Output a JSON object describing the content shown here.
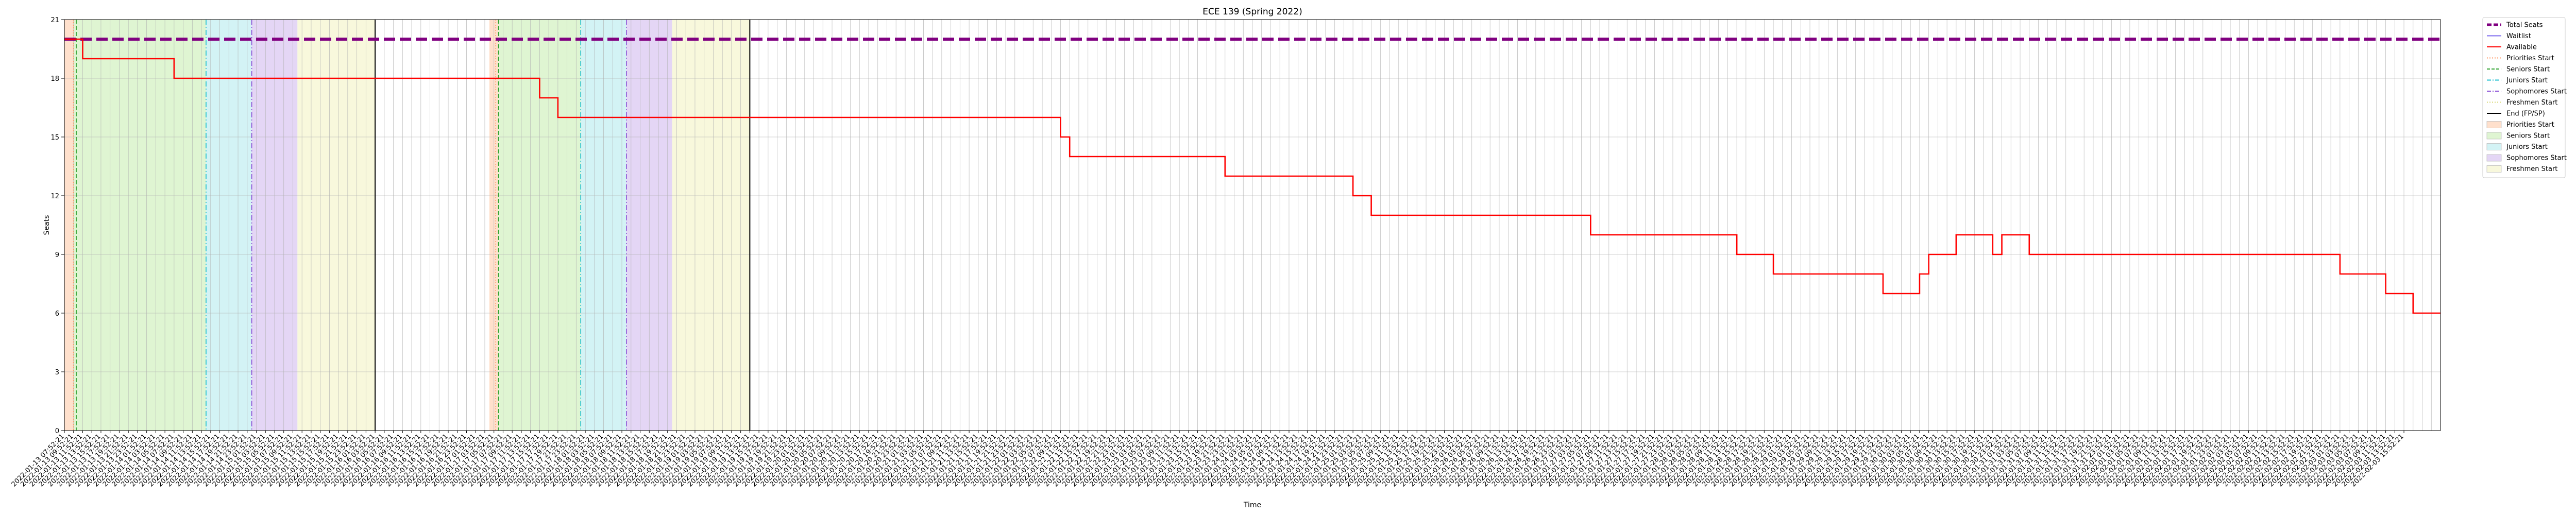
{
  "chart_data": {
    "type": "line",
    "title": "ECE 139 (Spring 2022)",
    "xlabel": "Time",
    "ylabel": "Seats",
    "ylim": [
      0,
      21
    ],
    "yticks": [
      0,
      3,
      6,
      9,
      12,
      15,
      18,
      21
    ],
    "grid": true,
    "legend_position": "outside-top-right",
    "x_slots": 260,
    "colors": {
      "total": "#800080",
      "waitlist": "#7b68ee",
      "available": "#ff0000",
      "priorities_line": "#ff9966",
      "seniors_line": "#2ca02c",
      "juniors_line": "#17becf",
      "sophomores_line": "#8a4fd6",
      "freshmen_line": "#d9d97a",
      "end_line": "#000000",
      "priorities_fill": "#ffe0cc",
      "seniors_fill": "#dff5d2",
      "juniors_fill": "#d3f3f5",
      "sophomores_fill": "#e4d6f5",
      "freshmen_fill": "#f8f8dc"
    },
    "series": [
      {
        "name": "Total Seats",
        "key": "total",
        "style": "dashed",
        "points": [
          [
            0,
            20
          ],
          [
            260,
            20
          ]
        ]
      },
      {
        "name": "Waitlist",
        "key": "waitlist",
        "style": "solid",
        "points": []
      },
      {
        "name": "Available",
        "key": "available",
        "style": "step",
        "points": [
          [
            0,
            20
          ],
          [
            2,
            20
          ],
          [
            2,
            19
          ],
          [
            12,
            19
          ],
          [
            12,
            18
          ],
          [
            52,
            18
          ],
          [
            52,
            17
          ],
          [
            54,
            17
          ],
          [
            54,
            16
          ],
          [
            109,
            16
          ],
          [
            109,
            15
          ],
          [
            110,
            15
          ],
          [
            110,
            14
          ],
          [
            127,
            14
          ],
          [
            127,
            13
          ],
          [
            141,
            13
          ],
          [
            141,
            12
          ],
          [
            143,
            12
          ],
          [
            143,
            11
          ],
          [
            167,
            11
          ],
          [
            167,
            10
          ],
          [
            183,
            10
          ],
          [
            183,
            9
          ],
          [
            187,
            9
          ],
          [
            187,
            8
          ],
          [
            199,
            8
          ],
          [
            199,
            7
          ],
          [
            203,
            7
          ],
          [
            203,
            8
          ],
          [
            204,
            8
          ],
          [
            204,
            9
          ],
          [
            207,
            9
          ],
          [
            207,
            10
          ],
          [
            211,
            10
          ],
          [
            211,
            9
          ],
          [
            212,
            9
          ],
          [
            212,
            10
          ],
          [
            215,
            10
          ],
          [
            215,
            9
          ],
          [
            249,
            9
          ],
          [
            249,
            8
          ],
          [
            254,
            8
          ],
          [
            254,
            7
          ],
          [
            257,
            7
          ],
          [
            257,
            6
          ],
          [
            260,
            6
          ]
        ]
      }
    ],
    "periods": [
      {
        "start": 0,
        "end": 1,
        "band": "priorities"
      },
      {
        "start": 1,
        "end": 15.5,
        "band": "seniors"
      },
      {
        "start": 15.5,
        "end": 20.5,
        "band": "juniors"
      },
      {
        "start": 20.5,
        "end": 25.5,
        "band": "sophomores"
      },
      {
        "start": 25.5,
        "end": 34,
        "band": "freshmen"
      },
      {
        "start": 46.5,
        "end": 47.5,
        "band": "priorities"
      },
      {
        "start": 47.5,
        "end": 56.5,
        "band": "seniors"
      },
      {
        "start": 56.5,
        "end": 61.5,
        "band": "juniors"
      },
      {
        "start": 61.5,
        "end": 66.5,
        "band": "sophomores"
      },
      {
        "start": 66.5,
        "end": 75,
        "band": "freshmen"
      }
    ],
    "markers": [
      {
        "x": 1,
        "band": "priorities"
      },
      {
        "x": 1.3,
        "band": "seniors"
      },
      {
        "x": 15.5,
        "band": "juniors"
      },
      {
        "x": 20.5,
        "band": "sophomores"
      },
      {
        "x": 34,
        "band": "end"
      },
      {
        "x": 47.2,
        "band": "priorities"
      },
      {
        "x": 47.5,
        "band": "seniors"
      },
      {
        "x": 56.5,
        "band": "juniors"
      },
      {
        "x": 61.5,
        "band": "sophomores"
      },
      {
        "x": 75,
        "band": "end"
      }
    ],
    "legend": [
      {
        "label": "Total Seats",
        "kind": "thickdash",
        "key": "total"
      },
      {
        "label": "Waitlist",
        "kind": "line",
        "key": "waitlist"
      },
      {
        "label": "Available",
        "kind": "line",
        "key": "available"
      },
      {
        "label": "Priorities Start",
        "kind": "dotted",
        "key": "priorities_line"
      },
      {
        "label": "Seniors Start",
        "kind": "dashed",
        "key": "seniors_line"
      },
      {
        "label": "Juniors Start",
        "kind": "dashdot",
        "key": "juniors_line"
      },
      {
        "label": "Sophomores Start",
        "kind": "dashdot",
        "key": "sophomores_line"
      },
      {
        "label": "Freshmen Start",
        "kind": "dotted",
        "key": "freshmen_line"
      },
      {
        "label": "End (FP/SP)",
        "kind": "line",
        "key": "end_line"
      },
      {
        "label": "Priorities Start",
        "kind": "patch",
        "key": "priorities_fill"
      },
      {
        "label": "Seniors Start",
        "kind": "patch",
        "key": "seniors_fill"
      },
      {
        "label": "Juniors Start",
        "kind": "patch",
        "key": "juniors_fill"
      },
      {
        "label": "Sophomores Start",
        "kind": "patch",
        "key": "sophomores_fill"
      },
      {
        "label": "Freshmen Start",
        "kind": "patch",
        "key": "freshmen_fill"
      }
    ],
    "x_tick_labels": [
      "2022-01-13 07:52:21",
      "2022-01-13 09:52:21",
      "2022-01-13 11:52:21",
      "2022-01-13 13:52:21",
      "2022-01-13 15:52:21",
      "2022-01-13 17:52:21",
      "2022-01-13 19:52:21",
      "2022-01-13 21:52:21",
      "2022-01-13 23:52:21",
      "2022-01-14 01:52:21",
      "2022-01-14 03:52:21",
      "2022-01-14 05:52:21",
      "2022-01-14 07:52:21",
      "2022-01-14 09:52:21",
      "2022-01-14 11:52:21",
      "2022-01-14 13:52:21",
      "2022-01-14 15:52:21",
      "2022-01-14 17:52:21",
      "2022-01-14 19:52:21",
      "2022-01-14 21:52:21",
      "2022-01-14 23:52:21",
      "2022-01-15 01:52:21",
      "2022-01-15 03:52:21",
      "2022-01-15 05:52:21",
      "2022-01-15 07:52:21",
      "2022-01-15 09:52:21",
      "2022-01-15 11:52:21",
      "2022-01-15 13:52:21",
      "2022-01-15 15:52:21",
      "2022-01-15 17:52:21",
      "2022-01-15 19:52:21",
      "2022-01-15 21:52:21",
      "2022-01-15 23:52:21",
      "2022-01-16 01:52:21",
      "2022-01-16 03:52:21",
      "2022-01-16 05:52:21",
      "2022-01-16 07:52:21",
      "2022-01-16 09:52:21",
      "2022-01-16 11:52:21",
      "2022-01-16 13:52:21",
      "2022-01-16 15:52:21",
      "2022-01-16 17:52:21",
      "2022-01-16 19:52:21",
      "2022-01-16 21:52:21",
      "2022-01-16 23:52:21",
      "2022-01-17 01:52:21",
      "2022-01-17 03:52:21",
      "2022-01-17 05:52:21",
      "2022-01-17 07:52:21",
      "2022-01-17 09:52:21",
      "2022-01-17 11:52:21",
      "2022-01-17 13:52:21",
      "2022-01-17 15:52:21",
      "2022-01-17 17:52:21",
      "2022-01-17 19:52:21",
      "2022-01-17 21:52:21",
      "2022-01-17 23:52:21",
      "2022-01-18 01:52:21",
      "2022-01-18 03:52:21",
      "2022-01-18 05:52:21",
      "2022-01-18 07:52:21",
      "2022-01-18 09:52:21",
      "2022-01-18 11:52:21",
      "2022-01-18 13:52:21",
      "2022-01-18 15:52:21",
      "2022-01-18 17:52:21",
      "2022-01-18 19:52:21",
      "2022-01-18 21:52:21",
      "2022-01-18 23:52:21",
      "2022-01-19 01:52:21",
      "2022-01-19 03:52:21",
      "2022-01-19 05:52:21",
      "2022-01-19 07:52:21",
      "2022-01-19 09:52:21",
      "2022-01-19 11:52:21",
      "2022-01-19 13:52:21",
      "2022-01-19 15:52:21",
      "2022-01-19 17:52:21",
      "2022-01-19 19:52:21",
      "2022-01-19 21:52:21",
      "2022-01-19 23:52:21",
      "2022-01-20 01:52:21",
      "2022-01-20 03:52:21",
      "2022-01-20 05:52:21",
      "2022-01-20 07:52:21",
      "2022-01-20 09:52:21",
      "2022-01-20 11:52:21",
      "2022-01-20 13:52:21",
      "2022-01-20 15:52:21",
      "2022-01-20 17:52:21",
      "2022-01-20 19:52:21",
      "2022-01-20 21:52:21",
      "2022-01-20 23:52:21",
      "2022-01-21 01:52:21",
      "2022-01-21 03:52:21",
      "2022-01-21 05:52:21",
      "2022-01-21 07:52:21",
      "2022-01-21 09:52:21",
      "2022-01-21 11:52:21",
      "2022-01-21 13:52:21",
      "2022-01-21 15:52:21",
      "2022-01-21 17:52:21",
      "2022-01-21 19:52:21",
      "2022-01-21 21:52:21",
      "2022-01-21 23:52:21",
      "2022-01-22 01:52:21",
      "2022-01-22 03:52:21",
      "2022-01-22 05:52:21",
      "2022-01-22 07:52:21",
      "2022-01-22 09:52:21",
      "2022-01-22 11:52:21",
      "2022-01-22 13:52:21",
      "2022-01-22 15:52:21",
      "2022-01-22 17:52:21",
      "2022-01-22 19:52:21",
      "2022-01-22 21:52:21",
      "2022-01-22 23:52:21",
      "2022-01-23 01:52:21",
      "2022-01-23 03:52:21",
      "2022-01-23 05:52:21",
      "2022-01-23 07:52:21",
      "2022-01-23 09:52:21",
      "2022-01-23 11:52:21",
      "2022-01-23 13:52:21",
      "2022-01-23 15:52:21",
      "2022-01-23 17:52:21",
      "2022-01-23 19:52:21",
      "2022-01-23 21:52:21",
      "2022-01-23 23:52:21",
      "2022-01-24 01:52:21",
      "2022-01-24 03:52:21",
      "2022-01-24 05:52:21",
      "2022-01-24 07:52:21",
      "2022-01-24 09:52:21",
      "2022-01-24 11:52:21",
      "2022-01-24 13:52:21",
      "2022-01-24 15:52:21",
      "2022-01-24 17:52:21",
      "2022-01-24 19:52:21",
      "2022-01-24 21:52:21",
      "2022-01-24 23:52:21",
      "2022-01-25 01:52:21",
      "2022-01-25 03:52:21",
      "2022-01-25 05:52:21",
      "2022-01-25 07:52:21",
      "2022-01-25 09:52:21",
      "2022-01-25 11:52:21",
      "2022-01-25 13:52:21",
      "2022-01-25 15:52:21",
      "2022-01-25 17:52:21",
      "2022-01-25 19:52:21",
      "2022-01-25 21:52:21",
      "2022-01-25 23:52:21",
      "2022-01-26 01:52:21",
      "2022-01-26 03:52:21",
      "2022-01-26 05:52:21",
      "2022-01-26 07:52:21",
      "2022-01-26 09:52:21",
      "2022-01-26 11:52:21",
      "2022-01-26 13:52:21",
      "2022-01-26 15:52:21",
      "2022-01-26 17:52:21",
      "2022-01-26 19:52:21",
      "2022-01-26 21:52:21",
      "2022-01-26 23:52:21",
      "2022-01-27 01:52:21",
      "2022-01-27 03:52:21",
      "2022-01-27 05:52:21",
      "2022-01-27 07:52:21",
      "2022-01-27 09:52:21",
      "2022-01-27 11:52:21",
      "2022-01-27 13:52:21",
      "2022-01-27 15:52:21",
      "2022-01-27 17:52:21",
      "2022-01-27 19:52:21",
      "2022-01-27 21:52:21",
      "2022-01-27 23:52:21",
      "2022-01-28 01:52:21",
      "2022-01-28 03:52:21",
      "2022-01-28 05:52:21",
      "2022-01-28 07:52:21",
      "2022-01-28 09:52:21",
      "2022-01-28 11:52:21",
      "2022-01-28 13:52:21",
      "2022-01-28 15:52:21",
      "2022-01-28 17:52:21",
      "2022-01-28 19:52:21",
      "2022-01-28 21:52:21",
      "2022-01-28 23:52:21",
      "2022-01-29 01:52:21",
      "2022-01-29 03:52:21",
      "2022-01-29 05:52:21",
      "2022-01-29 07:52:21",
      "2022-01-29 09:52:21",
      "2022-01-29 11:52:21",
      "2022-01-29 13:52:21",
      "2022-01-29 15:52:21",
      "2022-01-29 17:52:21",
      "2022-01-29 19:52:21",
      "2022-01-29 21:52:21",
      "2022-01-29 23:52:21",
      "2022-01-30 01:52:21",
      "2022-01-30 03:52:21",
      "2022-01-30 05:52:21",
      "2022-01-30 07:52:21",
      "2022-01-30 09:52:21",
      "2022-01-30 11:52:21",
      "2022-01-30 13:52:21",
      "2022-01-30 15:52:21",
      "2022-01-30 17:52:21",
      "2022-01-30 19:52:21",
      "2022-01-30 21:52:21",
      "2022-01-30 23:52:21",
      "2022-01-31 01:52:21",
      "2022-01-31 03:52:21",
      "2022-01-31 05:52:21",
      "2022-01-31 07:52:21",
      "2022-01-31 09:52:21",
      "2022-01-31 11:52:21",
      "2022-01-31 13:52:21",
      "2022-01-31 15:52:21",
      "2022-01-31 17:52:21",
      "2022-01-31 19:52:21",
      "2022-01-31 21:52:21",
      "2022-01-31 23:52:21",
      "2022-02-01 01:52:21",
      "2022-02-01 03:52:21",
      "2022-02-01 05:52:21",
      "2022-02-01 07:52:21",
      "2022-02-01 09:52:21",
      "2022-02-01 11:52:21",
      "2022-02-01 13:52:21",
      "2022-02-01 15:52:21",
      "2022-02-01 17:52:21",
      "2022-02-01 19:52:21",
      "2022-02-01 21:52:21",
      "2022-02-01 23:52:21",
      "2022-02-02 01:52:21",
      "2022-02-02 03:52:21",
      "2022-02-02 05:52:21",
      "2022-02-02 07:52:21",
      "2022-02-02 09:52:21",
      "2022-02-02 11:52:21",
      "2022-02-02 13:52:21",
      "2022-02-02 15:52:21",
      "2022-02-02 17:52:21",
      "2022-02-02 19:52:21",
      "2022-02-02 21:52:21",
      "2022-02-02 23:52:21",
      "2022-02-03 01:52:21",
      "2022-02-03 03:52:21",
      "2022-02-03 05:52:21",
      "2022-02-03 07:52:21",
      "2022-02-03 09:52:21",
      "2022-02-03 11:52:21",
      "2022-02-03 13:52:21",
      "2022-02-03 15:52:21"
    ]
  }
}
